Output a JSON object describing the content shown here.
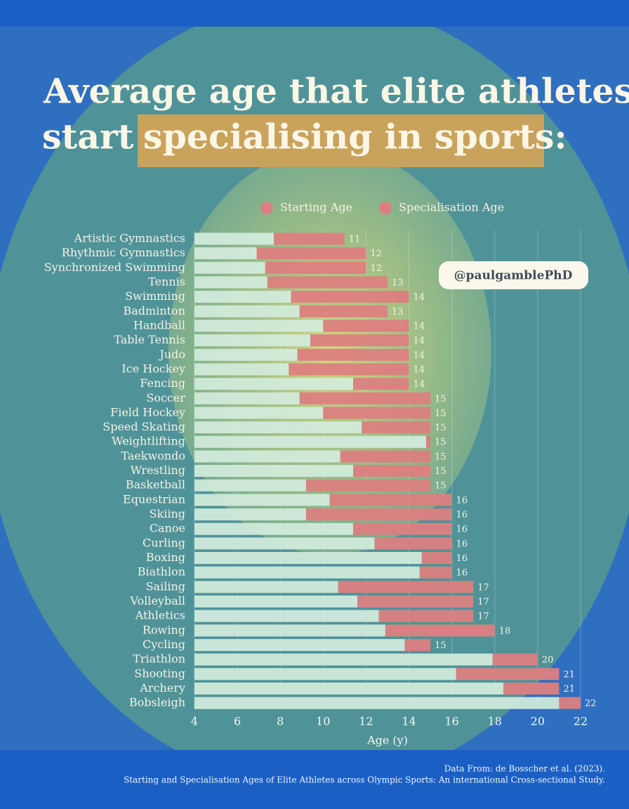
{
  "title_line1": "Average age that elite athletes",
  "title_line2": "start",
  "title_highlight": "specialising in sports:",
  "watermark": "@paulgamblePhD",
  "source_line1": "Data From: de Bosscher et al. (2023).",
  "source_line2": "Starting and Specialisation Ages of Elite Athletes across Olympic Sports: An international Cross-sectional Study.",
  "chart_data": {
    "type": "bar",
    "orientation": "horizontal",
    "categories": [
      "Artistic Gymnastics",
      "Rhythmic Gymnastics",
      "Synchronized Swimming",
      "Tennis",
      "Swimming",
      "Badminton",
      "Handball",
      "Table Tennis",
      "Judo",
      "Ice Hockey",
      "Fencing",
      "Soccer",
      "Field Hockey",
      "Speed Skating",
      "Weightlifting",
      "Taekwondo",
      "Wrestling",
      "Basketball",
      "Equestrian",
      "Skiing",
      "Canoe",
      "Curling",
      "Boxing",
      "Biathlon",
      "Sailing",
      "Volleyball",
      "Athletics",
      "Rowing",
      "Cycling",
      "Triathlon",
      "Shooting",
      "Archery",
      "Bobsleigh"
    ],
    "series": [
      {
        "name": "Starting Age",
        "color": "#d3ecdc",
        "values": [
          7.7,
          6.9,
          7.3,
          7.4,
          8.5,
          8.9,
          10.0,
          9.4,
          8.8,
          8.4,
          11.4,
          8.9,
          10.0,
          11.8,
          14.8,
          10.8,
          11.4,
          9.2,
          10.3,
          9.2,
          11.4,
          12.4,
          14.6,
          14.5,
          10.7,
          11.6,
          12.6,
          12.9,
          13.8,
          17.9,
          16.2,
          18.4,
          21.0
        ]
      },
      {
        "name": "Specialisation Age",
        "color": "#dc7f80",
        "values": [
          11,
          12,
          12,
          13,
          14,
          13,
          14,
          14,
          14,
          14,
          14,
          15,
          15,
          15,
          15,
          15,
          15,
          15,
          16,
          16,
          16,
          16,
          16,
          16,
          17,
          17,
          17,
          18,
          15,
          20,
          21,
          21,
          22
        ]
      }
    ],
    "xlabel": "Age (y)",
    "xlim": [
      4,
      22
    ],
    "xticks": [
      4,
      6,
      8,
      10,
      12,
      14,
      16,
      18,
      20,
      22
    ],
    "grid": true
  }
}
